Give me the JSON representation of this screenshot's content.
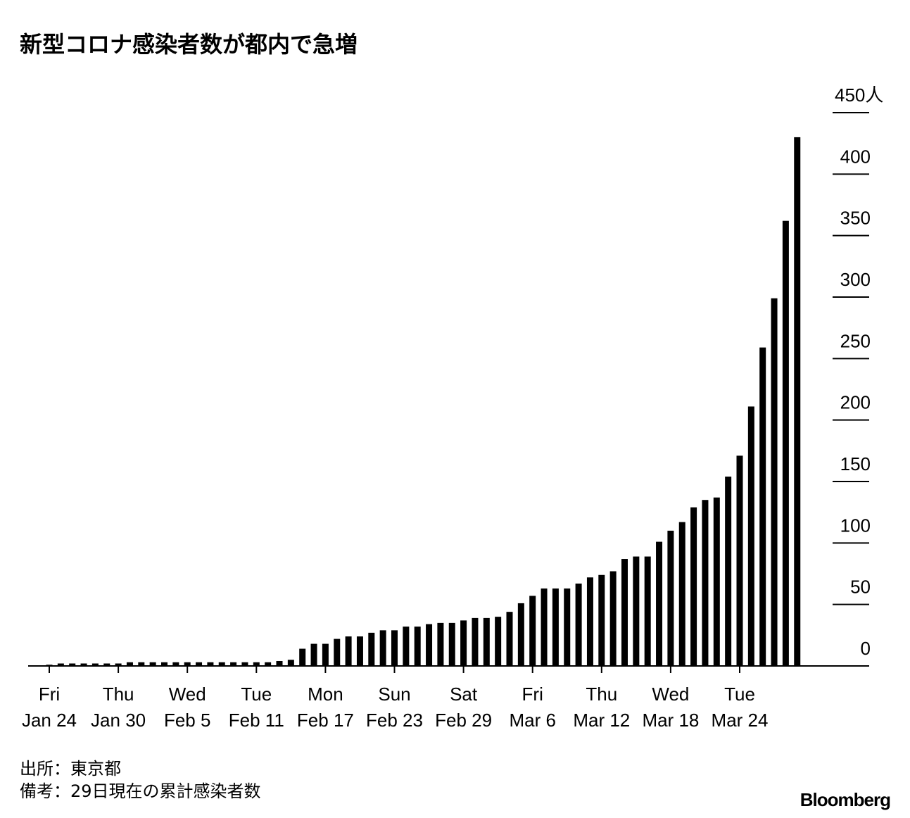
{
  "chart_data": {
    "type": "bar",
    "title": "新型コロナ感染者数が都内で急増",
    "categories": [
      "Jan 24",
      null,
      null,
      null,
      null,
      null,
      "Jan 30",
      null,
      null,
      null,
      null,
      null,
      "Feb 5",
      null,
      null,
      null,
      null,
      null,
      "Feb 11",
      null,
      null,
      null,
      null,
      null,
      "Feb 17",
      null,
      null,
      null,
      null,
      null,
      "Feb 23",
      null,
      null,
      null,
      null,
      null,
      "Feb 29",
      null,
      null,
      null,
      null,
      null,
      "Mar 6",
      null,
      null,
      null,
      null,
      null,
      "Mar 12",
      null,
      null,
      null,
      null,
      null,
      "Mar 18",
      null,
      null,
      null,
      null,
      null,
      "Mar 24",
      null,
      null,
      null,
      null,
      null
    ],
    "weekdays": [
      "Fri",
      null,
      null,
      null,
      null,
      null,
      "Thu",
      null,
      null,
      null,
      null,
      null,
      "Wed",
      null,
      null,
      null,
      null,
      null,
      "Tue",
      null,
      null,
      null,
      null,
      null,
      "Mon",
      null,
      null,
      null,
      null,
      null,
      "Sun",
      null,
      null,
      null,
      null,
      null,
      "Sat",
      null,
      null,
      null,
      null,
      null,
      "Fri",
      null,
      null,
      null,
      null,
      null,
      "Thu",
      null,
      null,
      null,
      null,
      null,
      "Wed",
      null,
      null,
      null,
      null,
      null,
      "Tue",
      null,
      null,
      null,
      null,
      null
    ],
    "values": [
      1,
      2,
      2,
      2,
      2,
      2,
      2,
      3,
      3,
      3,
      3,
      3,
      3,
      3,
      3,
      3,
      3,
      3,
      3,
      3,
      4,
      5,
      14,
      18,
      18,
      22,
      24,
      24,
      27,
      29,
      29,
      32,
      32,
      34,
      35,
      35,
      37,
      39,
      39,
      40,
      44,
      51,
      57,
      63,
      63,
      63,
      67,
      72,
      74,
      77,
      87,
      89,
      89,
      101,
      110,
      117,
      129,
      135,
      137,
      154,
      171,
      211,
      259,
      299,
      362,
      430
    ],
    "color": "#000000",
    "ylim": [
      0,
      450
    ],
    "yticks": [
      0,
      50,
      100,
      150,
      200,
      250,
      300,
      350,
      400,
      {
        "value": 450,
        "label": "450人"
      }
    ],
    "source": "出所：東京都",
    "note": "備考：29日現在の累計感染者数",
    "brand": "Bloomberg"
  }
}
